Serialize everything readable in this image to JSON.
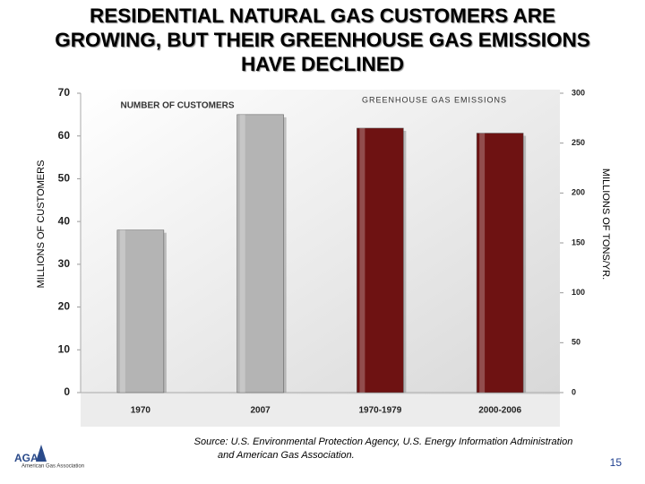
{
  "chart_data": {
    "type": "bar",
    "title": "RESIDENTIAL NATURAL GAS CUSTOMERS ARE GROWING, BUT THEIR GREENHOUSE GAS EMISSIONS HAVE DECLINED",
    "categories": [
      "1970",
      "2007",
      "1970-1979",
      "2000-2006"
    ],
    "series": [
      {
        "name": "NUMBER OF CUSTOMERS",
        "color": "#b4b4b4",
        "values": [
          38,
          65,
          null,
          null
        ]
      },
      {
        "name": "GREENHOUSE GAS EMISSIONS",
        "color": "#6e1212",
        "values": [
          null,
          null,
          265,
          260
        ],
        "axis": "y2"
      }
    ],
    "ylabel": "MILLIONS OF CUSTOMERS",
    "y2label": "MILLIONS OF TONS/YR.",
    "ylim": [
      0,
      70
    ],
    "yticks": [
      0,
      10,
      20,
      30,
      40,
      50,
      60,
      70
    ],
    "y2lim": [
      0,
      300
    ],
    "y2ticks": [
      0,
      50,
      100,
      150,
      200,
      250,
      300
    ],
    "source": [
      "Source: U.S. Environmental Protection Agency, U.S. Energy Information Administration",
      "and American Gas Association."
    ],
    "logo": {
      "mark": "AGA",
      "name": "American Gas Association"
    },
    "page_number": "15"
  }
}
